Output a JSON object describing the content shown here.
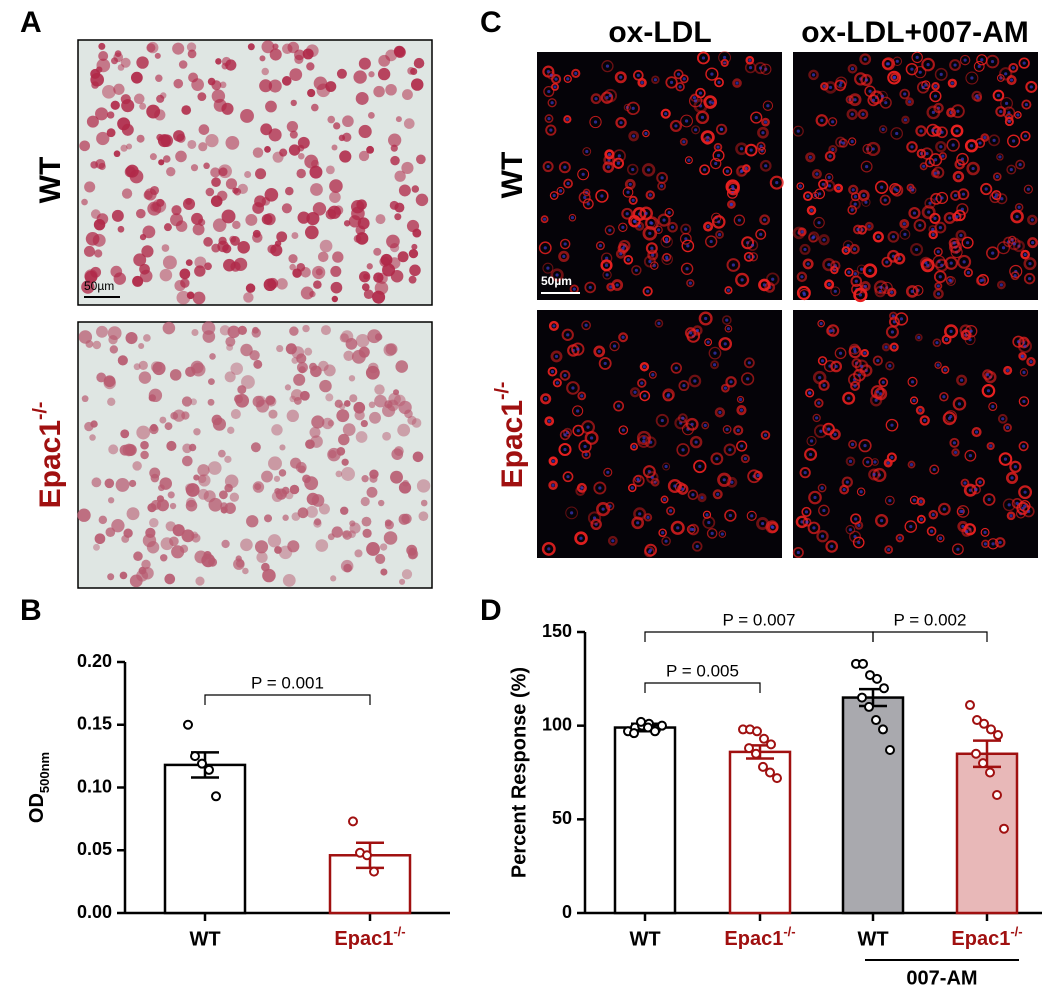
{
  "figure": {
    "panel_labels": [
      "A",
      "B",
      "C",
      "D"
    ]
  },
  "image_a": {
    "row_labels": [
      "WT",
      "Epac1-/-"
    ],
    "scale_bar": "50µm"
  },
  "image_c": {
    "column_labels": [
      "ox-LDL",
      "ox-LDL+007-AM"
    ],
    "row_labels": [
      "WT",
      "Epac1-/-"
    ],
    "scale_bar": "50µm"
  },
  "chart_data": [
    {
      "type": "bar",
      "ylabel": {
        "text": "OD",
        "sub": "500nm"
      },
      "categories": [
        "WT",
        "Epac1-/-"
      ],
      "label_colors": [
        "#000000",
        "#a01010"
      ],
      "values": [
        0.118,
        0.046
      ],
      "errors": [
        0.01,
        0.01
      ],
      "points": [
        [
          0.15,
          0.125,
          0.119,
          0.114,
          0.093
        ],
        [
          0.073,
          0.048,
          0.046,
          0.033
        ]
      ],
      "bar_fill": [
        "#ffffff",
        "#ffffff"
      ],
      "bar_stroke": [
        "#000000",
        "#a01010"
      ],
      "ylim": [
        0,
        0.2
      ],
      "yticks": [
        {
          "value": 0,
          "label": "0.00"
        },
        {
          "value": 0.05,
          "label": "0.05"
        },
        {
          "value": 0.1,
          "label": "0.10"
        },
        {
          "value": 0.15,
          "label": "0.15"
        },
        {
          "value": 0.2,
          "label": "0.20"
        }
      ],
      "annotations": [
        "P = 0.001"
      ]
    },
    {
      "type": "bar",
      "ylabel": "Percent Response (%)",
      "categories": [
        "WT",
        "Epac1-/-",
        "WT",
        "Epac1-/-"
      ],
      "label_colors": [
        "#000000",
        "#a01010",
        "#000000",
        "#a01010"
      ],
      "group_label": "007-AM",
      "values": [
        99,
        86,
        115,
        85
      ],
      "errors": [
        2,
        3.5,
        4.5,
        7
      ],
      "points": [
        [
          97,
          99,
          100,
          101,
          98,
          96,
          102,
          99,
          97,
          100
        ],
        [
          98,
          98,
          97,
          93,
          90,
          88,
          85,
          78,
          75,
          72
        ],
        [
          133,
          133,
          127,
          125,
          120,
          115,
          110,
          103,
          98,
          87
        ],
        [
          111,
          103,
          101,
          98,
          95,
          85,
          80,
          75,
          63,
          45
        ]
      ],
      "bar_fill": [
        "#ffffff",
        "#ffffff",
        "#a9a9ae",
        "#e8b8b8"
      ],
      "bar_stroke": [
        "#000000",
        "#a01010",
        "#000000",
        "#a01010"
      ],
      "ylim": [
        0,
        150
      ],
      "yticks": [
        0,
        50,
        100,
        150
      ],
      "annotations": [
        "P = 0.005",
        "P = 0.007",
        "P = 0.002"
      ]
    }
  ]
}
